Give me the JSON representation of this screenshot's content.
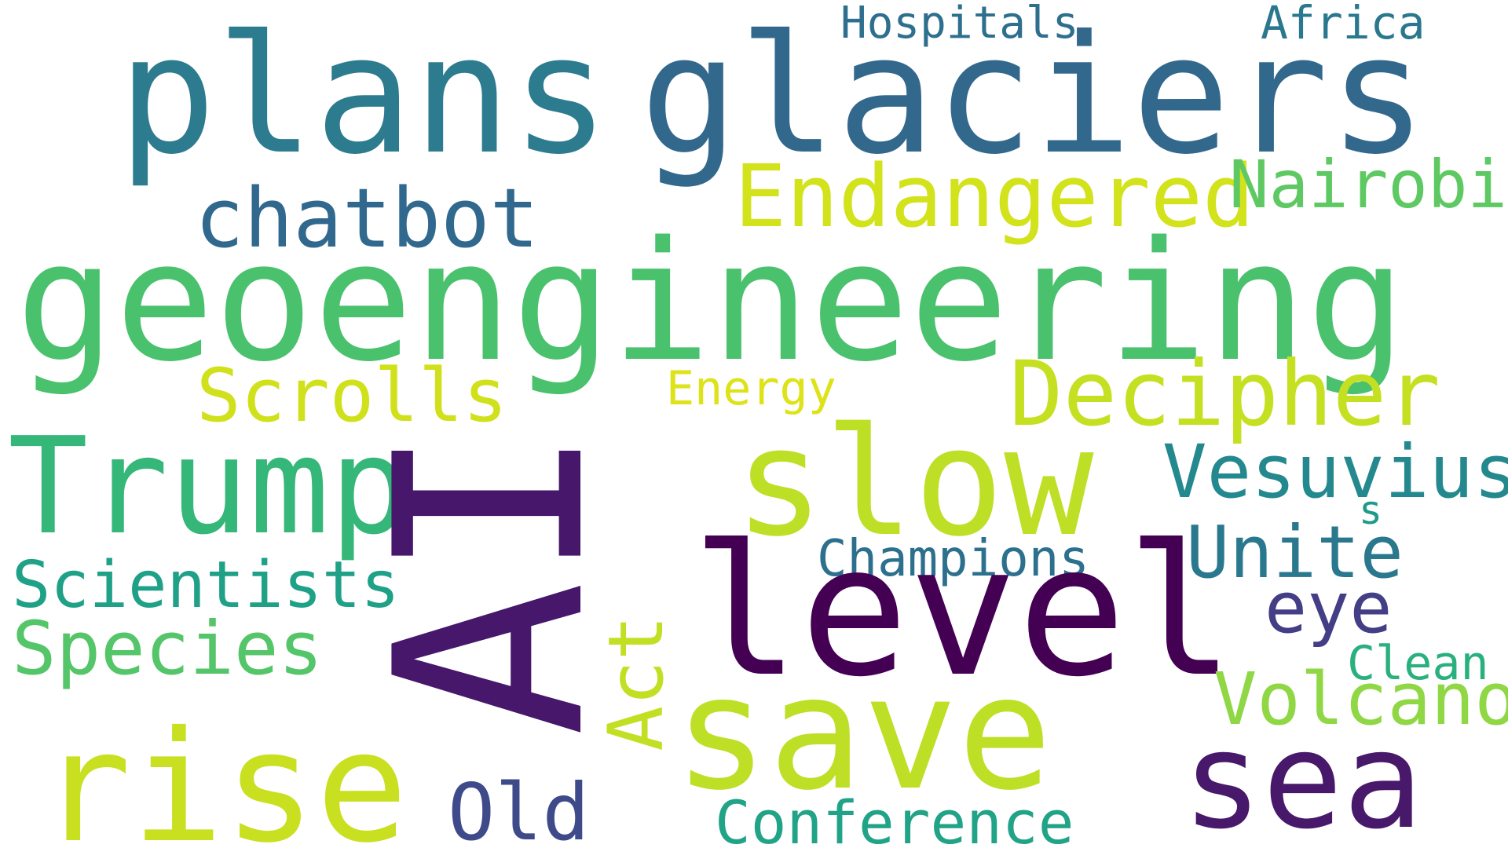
{
  "words": [
    {
      "id": "plans",
      "text": "plans",
      "color": "#2c7b8e",
      "vertical": false
    },
    {
      "id": "glaciers",
      "text": "glaciers",
      "color": "#33688d",
      "vertical": false
    },
    {
      "id": "hospitals",
      "text": "Hospitals",
      "color": "#2e6f8e",
      "vertical": false
    },
    {
      "id": "africa",
      "text": "Africa",
      "color": "#2a788e",
      "vertical": false
    },
    {
      "id": "endangered",
      "text": "Endangered",
      "color": "#d2e21b",
      "vertical": false
    },
    {
      "id": "nairobi",
      "text": "Nairobi",
      "color": "#5ec962",
      "vertical": false
    },
    {
      "id": "chatbot",
      "text": "chatbot",
      "color": "#31688e",
      "vertical": false
    },
    {
      "id": "geoengineering",
      "text": "geoengineering",
      "color": "#4ac16d",
      "vertical": false
    },
    {
      "id": "scrolls",
      "text": "Scrolls",
      "color": "#d0e11c",
      "vertical": false
    },
    {
      "id": "energy",
      "text": "Energy",
      "color": "#dde318",
      "vertical": false
    },
    {
      "id": "decipher",
      "text": "Decipher",
      "color": "#c5e021",
      "vertical": false
    },
    {
      "id": "trump",
      "text": "Trump",
      "color": "#35b779",
      "vertical": false
    },
    {
      "id": "ai",
      "text": "AI",
      "color": "#46176a",
      "vertical": true
    },
    {
      "id": "slow",
      "text": "slow",
      "color": "#bddf26",
      "vertical": false
    },
    {
      "id": "vesuvius",
      "text": "Vesuvius",
      "color": "#23898e",
      "vertical": false
    },
    {
      "id": "s",
      "text": "s",
      "color": "#1f9a8a",
      "vertical": false
    },
    {
      "id": "unite",
      "text": "Unite",
      "color": "#2a788e",
      "vertical": false
    },
    {
      "id": "champions",
      "text": "Champions",
      "color": "#2d708e",
      "vertical": false
    },
    {
      "id": "scientists",
      "text": "Scientists",
      "color": "#1fa188",
      "vertical": false
    },
    {
      "id": "level",
      "text": "level",
      "color": "#440154",
      "vertical": false
    },
    {
      "id": "eye",
      "text": "eye",
      "color": "#433e85",
      "vertical": false
    },
    {
      "id": "species",
      "text": "Species",
      "color": "#54c568",
      "vertical": false
    },
    {
      "id": "act",
      "text": "Act",
      "color": "#c2df23",
      "vertical": true
    },
    {
      "id": "clean",
      "text": "Clean",
      "color": "#2ab07f",
      "vertical": false
    },
    {
      "id": "volcano",
      "text": "Volcano",
      "color": "#8fd744",
      "vertical": false
    },
    {
      "id": "save",
      "text": "save",
      "color": "#bddf26",
      "vertical": false
    },
    {
      "id": "sea",
      "text": "sea",
      "color": "#48186a",
      "vertical": false
    },
    {
      "id": "rise",
      "text": "rise",
      "color": "#c8e020",
      "vertical": false
    },
    {
      "id": "old",
      "text": "Old",
      "color": "#3e4a89",
      "vertical": false
    },
    {
      "id": "conference",
      "text": "Conference",
      "color": "#20a386",
      "vertical": false
    }
  ]
}
